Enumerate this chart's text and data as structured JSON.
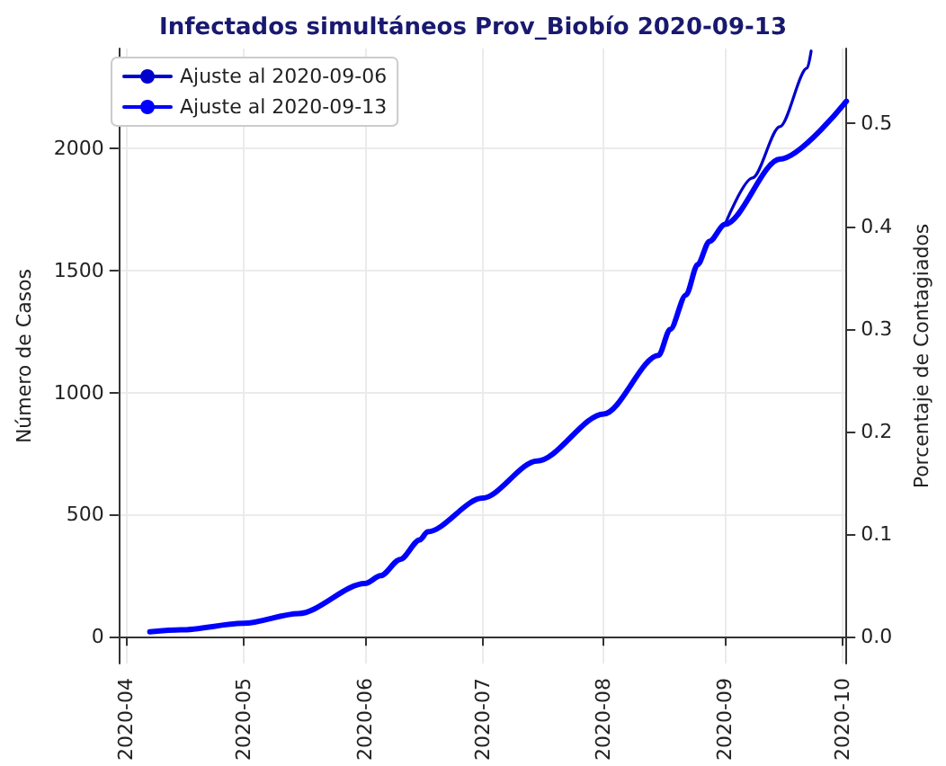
{
  "chart_data": {
    "type": "line",
    "title": "Infectados simultáneos Prov_Biobío 2020-09-13",
    "ylabel": "Número de Casos",
    "y2label": "Porcentaje de Contagiados",
    "xlim": [
      "2020-03-30",
      "2020-10-02"
    ],
    "xticks": [
      "2020-04",
      "2020-05",
      "2020-06",
      "2020-07",
      "2020-08",
      "2020-09",
      "2020-10"
    ],
    "ylim": [
      -110,
      2410
    ],
    "yticks": [
      0,
      500,
      1000,
      1500,
      2000
    ],
    "y2lim": [
      -0.026,
      0.573
    ],
    "y2ticks": [
      {
        "value": 0,
        "label": "0.0"
      },
      {
        "value": 0.1,
        "label": "0.1"
      },
      {
        "value": 0.2,
        "label": "0.2"
      },
      {
        "value": 0.3,
        "label": "0.3"
      },
      {
        "value": 0.4,
        "label": "0.4"
      },
      {
        "value": 0.5,
        "label": "0.5"
      }
    ],
    "grid": true,
    "legend": "top left",
    "marker": "none",
    "line_style": "solid",
    "series": [
      {
        "name": "Ajuste al 2020-09-06",
        "color": "#0000cd",
        "x": [
          "2020-09-01",
          "2020-09-08",
          "2020-09-15",
          "2020-09-22",
          "2020-09-23"
        ],
        "values": [
          1690,
          1880,
          2090,
          2330,
          2400
        ]
      },
      {
        "name": "Ajuste al 2020-09-13",
        "color": "#0000ff",
        "x": [
          "2020-04-07",
          "2020-04-15",
          "2020-05-01",
          "2020-05-15",
          "2020-06-01",
          "2020-06-05",
          "2020-06-10",
          "2020-06-15",
          "2020-06-17",
          "2020-07-01",
          "2020-07-15",
          "2020-08-01",
          "2020-08-15",
          "2020-08-18",
          "2020-08-22",
          "2020-08-25",
          "2020-08-28",
          "2020-09-01",
          "2020-09-15",
          "2020-10-02"
        ],
        "values": [
          20,
          28,
          55,
          95,
          218,
          250,
          317,
          397,
          430,
          568,
          720,
          913,
          1153,
          1260,
          1400,
          1525,
          1620,
          1690,
          1957,
          2194
        ]
      }
    ]
  }
}
